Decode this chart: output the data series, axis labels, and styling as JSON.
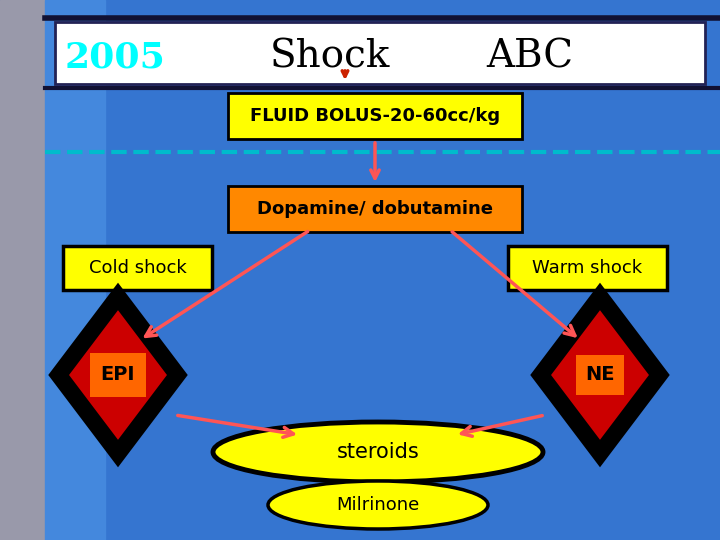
{
  "bg_color": "#3575d0",
  "bg_color_left": "#9999aa",
  "bg_color_right": "#2255bb",
  "title_box_color": "#ffffff",
  "title_box_edge": "#222255",
  "title_2005_color": "#00ffff",
  "title_shock_abc_color": "#000000",
  "fluid_box_color": "#ffff00",
  "fluid_box_edge": "#000000",
  "fluid_text": "FLUID BOLUS-20-60cc/kg",
  "fluid_text_color": "#000000",
  "dopa_box_color": "#ff8800",
  "dopa_box_edge": "#000000",
  "dopa_text": "Dopamine/ dobutamine",
  "dopa_text_color": "#000000",
  "cold_box_color": "#ffff00",
  "cold_box_edge": "#000000",
  "cold_text": "Cold shock",
  "warm_box_color": "#ffff00",
  "warm_box_edge": "#000000",
  "warm_text": "Warm shock",
  "epi_diamond_outer": "#cc0000",
  "epi_diamond_border": "#000000",
  "epi_diamond_inner": "#ff6600",
  "epi_text": "EPI",
  "epi_text_color": "#000000",
  "ne_diamond_outer": "#cc0000",
  "ne_diamond_border": "#000000",
  "ne_diamond_inner": "#ff6600",
  "ne_text": "NE",
  "ne_text_color": "#000000",
  "steroids_ellipse_color": "#ffff00",
  "steroids_ellipse_edge": "#000000",
  "steroids_text": "steroids",
  "steroids_text_color": "#000000",
  "milrinone_ellipse_color": "#ffff00",
  "milrinone_ellipse_edge": "#000000",
  "milrinone_text": "Milrinone",
  "milrinone_text_color": "#000000",
  "arrow_color": "#ff5555",
  "dashed_line_color": "#00bbcc",
  "dark_line_color": "#111133",
  "title_text_2005": "2005",
  "title_text_shock": "Shock",
  "title_text_abc": "ABC"
}
